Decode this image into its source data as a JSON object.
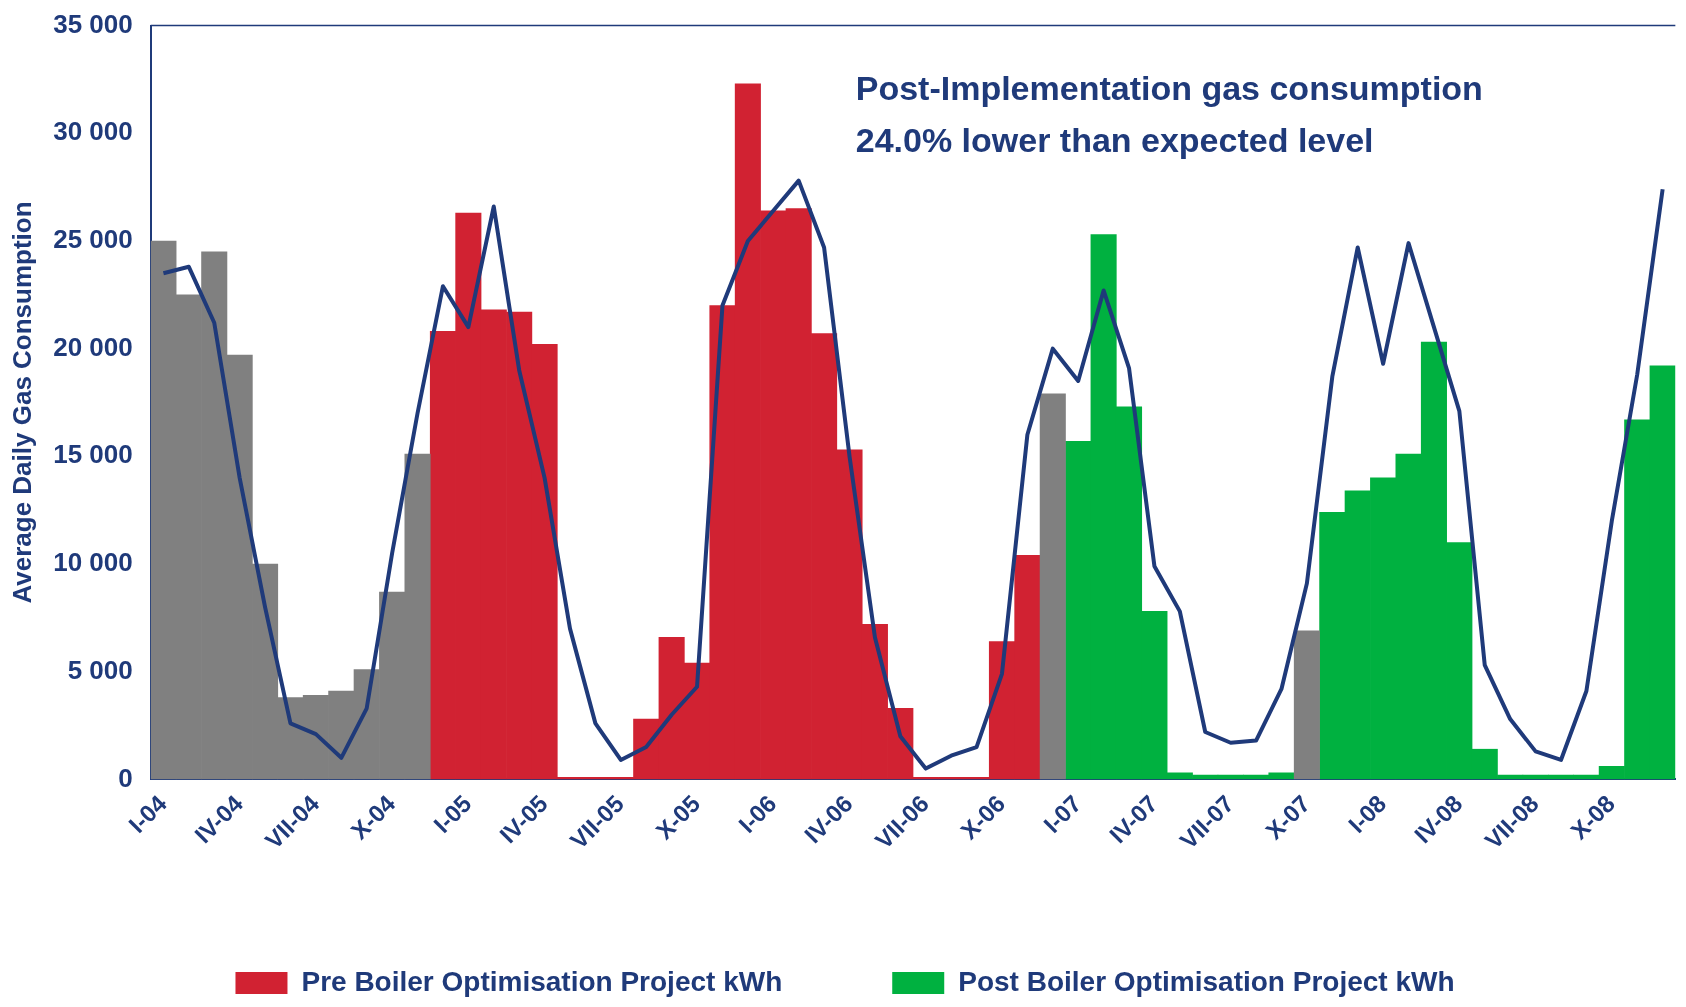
{
  "chart_data": {
    "type": "bar",
    "stacked": true,
    "ylabel": "Average Daily Gas Consumption",
    "annotations": [
      "Post-Implementation gas consumption",
      "24.0% lower than expected level"
    ],
    "categories": [
      "I-04",
      null,
      null,
      "IV-04",
      null,
      null,
      "VII-04",
      null,
      null,
      "X-04",
      null,
      null,
      "I-05",
      null,
      null,
      "IV-05",
      null,
      null,
      "VII-05",
      null,
      null,
      "X-05",
      null,
      null,
      "I-06",
      null,
      null,
      "IV-06",
      null,
      null,
      "VII-06",
      null,
      null,
      "X-06",
      null,
      null,
      "I-07",
      null,
      null,
      "IV-07",
      null,
      null,
      "VII-07",
      null,
      null,
      "X-07",
      null,
      null,
      "I-08",
      null,
      null,
      "IV-08",
      null,
      null,
      "VII-08",
      null,
      null,
      "X-08",
      null,
      null
    ],
    "series": [
      {
        "color": "#808080",
        "values": [
          25000,
          22500,
          24500,
          19700,
          10000,
          3800,
          3900,
          4100,
          5100,
          8700,
          15100,
          null,
          null,
          null,
          null,
          null,
          null,
          null,
          null,
          null,
          null,
          null,
          null,
          null,
          null,
          null,
          null,
          null,
          null,
          null,
          null,
          null,
          null,
          null,
          null,
          17900,
          null,
          null,
          null,
          null,
          null,
          null,
          null,
          null,
          null,
          6900,
          null,
          null,
          null,
          null,
          null,
          null,
          null,
          null,
          null,
          null,
          null,
          null,
          null,
          null
        ]
      },
      {
        "name": "Pre Boiler Optimisation Project kWh",
        "color": "#d12232",
        "values": [
          null,
          null,
          null,
          null,
          null,
          null,
          null,
          null,
          null,
          null,
          null,
          20800,
          26300,
          21800,
          21700,
          20200,
          100,
          100,
          100,
          2800,
          6600,
          5400,
          22000,
          32300,
          26400,
          26500,
          20700,
          15300,
          7200,
          3300,
          100,
          100,
          100,
          6400,
          10400,
          null,
          null,
          null,
          null,
          null,
          null,
          null,
          null,
          null,
          null,
          null,
          null,
          null,
          null,
          null,
          null,
          null,
          null,
          null,
          null,
          null,
          null,
          null,
          null,
          null
        ]
      },
      {
        "name": "Post Boiler Optimisation Project kWh",
        "color": "#00b140",
        "values": [
          null,
          null,
          null,
          null,
          null,
          null,
          null,
          null,
          null,
          null,
          null,
          null,
          null,
          null,
          null,
          null,
          null,
          null,
          null,
          null,
          null,
          null,
          null,
          null,
          null,
          null,
          null,
          null,
          null,
          null,
          null,
          null,
          null,
          null,
          null,
          null,
          15700,
          25300,
          17300,
          7800,
          300,
          200,
          200,
          200,
          300,
          null,
          12400,
          13400,
          14000,
          15100,
          20300,
          11000,
          1400,
          200,
          200,
          200,
          200,
          600,
          16700,
          19200
        ]
      },
      {
        "type": "line",
        "color": "#1f3a7a",
        "values": [
          23500,
          23800,
          21200,
          14000,
          8000,
          2600,
          2100,
          1000,
          3300,
          10500,
          17000,
          22900,
          21000,
          26600,
          19000,
          14000,
          7000,
          2600,
          900,
          1500,
          3000,
          4300,
          22000,
          25000,
          26400,
          27800,
          24700,
          15000,
          6600,
          2000,
          500,
          1100,
          1500,
          4900,
          16000,
          20000,
          18500,
          22700,
          19100,
          9900,
          7800,
          2200,
          1700,
          1800,
          4200,
          9100,
          18700,
          24700,
          19300,
          24900,
          21000,
          17100,
          5300,
          2800,
          1300,
          900,
          4100,
          12000,
          18800,
          27400
        ]
      }
    ],
    "ylim": [
      0,
      35000
    ],
    "yticks": [
      0,
      {
        "value": 5000,
        "label": "5 000"
      },
      {
        "value": 10000,
        "label": "10 000"
      },
      {
        "value": 15000,
        "label": "15 000"
      },
      {
        "value": 20000,
        "label": "20 000"
      },
      {
        "value": 25000,
        "label": "25 000"
      },
      {
        "value": 30000,
        "label": "30 000"
      },
      {
        "value": 35000,
        "label": "35 000"
      }
    ],
    "grid": false,
    "legend": "bottom"
  }
}
